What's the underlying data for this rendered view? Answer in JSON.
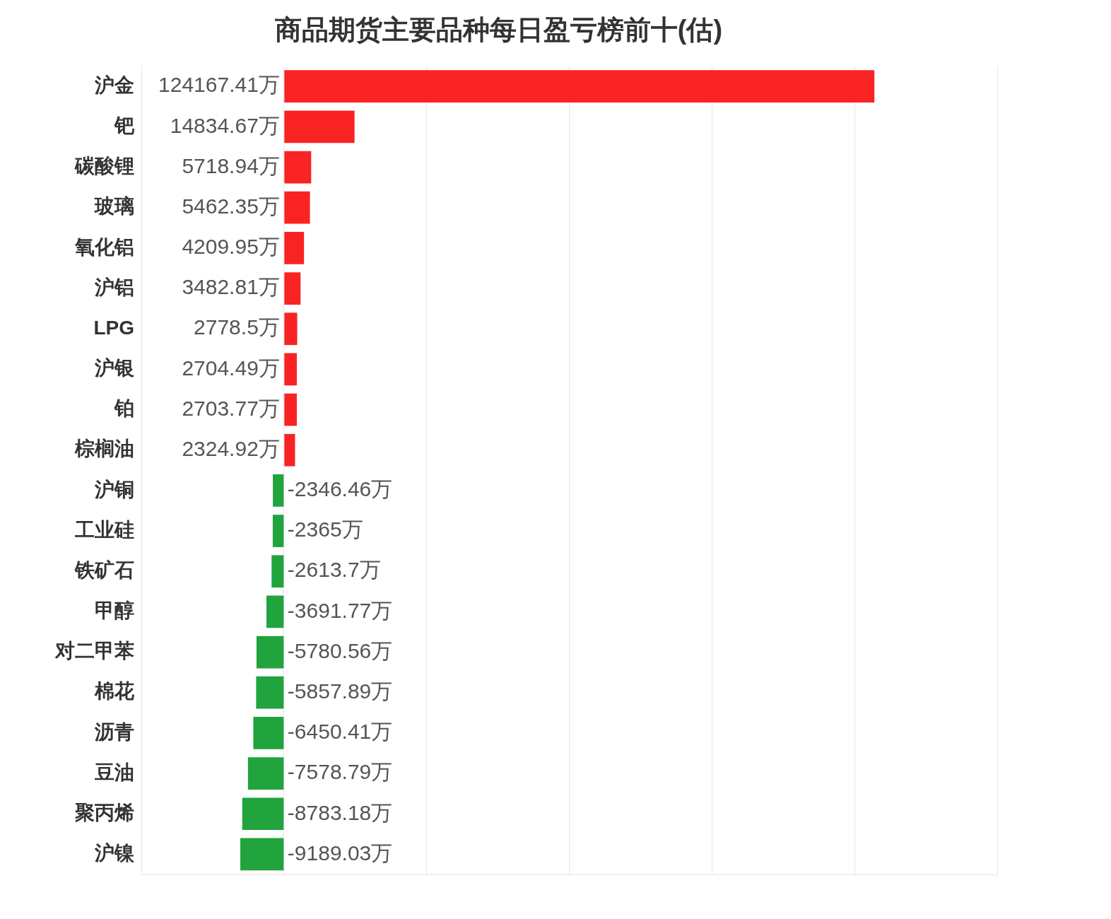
{
  "chart_data": {
    "type": "bar",
    "orientation": "horizontal",
    "title": "商品期货主要品种每日盈亏榜前十(估)",
    "categories": [
      "沪金",
      "钯",
      "碳酸锂",
      "玻璃",
      "氧化铝",
      "沪铝",
      "LPG",
      "沪银",
      "铂",
      "棕榈油",
      "沪铜",
      "工业硅",
      "铁矿石",
      "甲醇",
      "对二甲苯",
      "棉花",
      "沥青",
      "豆油",
      "聚丙烯",
      "沪镍"
    ],
    "values": [
      124167.41,
      14834.67,
      5718.94,
      5462.35,
      4209.95,
      3482.81,
      2778.5,
      2704.49,
      2703.77,
      2324.92,
      -2346.46,
      -2365,
      -2613.7,
      -3691.77,
      -5780.56,
      -5857.89,
      -6450.41,
      -7578.79,
      -8783.18,
      -9189.03
    ],
    "value_labels": [
      "124167.41万",
      "14834.67万",
      "5718.94万",
      "5462.35万",
      "4209.95万",
      "3482.81万",
      "2778.5万",
      "2704.49万",
      "2703.77万",
      "2324.92万",
      "-2346.46万",
      "-2365万",
      "-2613.7万",
      "-3691.77万",
      "-5780.56万",
      "-5857.89万",
      "-6450.41万",
      "-7578.79万",
      "-8783.18万",
      "-9189.03万"
    ],
    "colors": [
      "#f92324",
      "#f92324",
      "#f92324",
      "#f92324",
      "#f92324",
      "#f92324",
      "#f92324",
      "#f92324",
      "#f92324",
      "#f92324",
      "#21a33e",
      "#21a33e",
      "#21a33e",
      "#21a33e",
      "#21a33e",
      "#21a33e",
      "#21a33e",
      "#21a33e",
      "#21a33e",
      "#21a33e"
    ],
    "xlim": [
      -30000,
      150000
    ],
    "xticks": [
      {
        "value": -30000,
        "label": null
      },
      {
        "value": 0,
        "label": null
      },
      {
        "value": 30000,
        "label": null
      },
      {
        "value": 60000,
        "label": null
      },
      {
        "value": 90000,
        "label": null
      },
      {
        "value": 120000,
        "label": null
      },
      {
        "value": 150000,
        "label": null
      }
    ],
    "grid": "x",
    "tick_labels": "y",
    "legend": false
  }
}
